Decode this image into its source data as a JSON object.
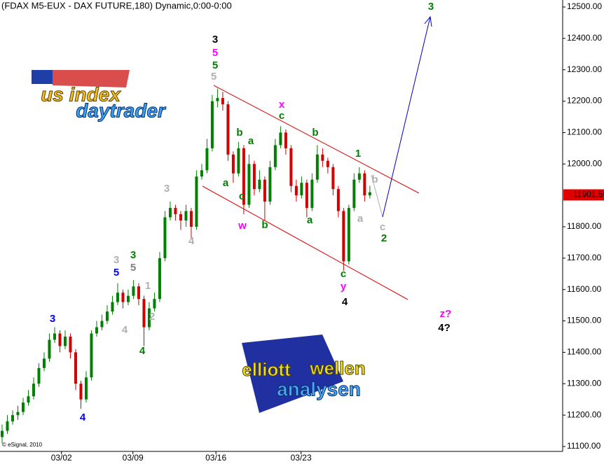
{
  "chart_data": {
    "type": "candlestick",
    "title": "(FDAX M5-EUX - DAX FUTURE,180) Dynamic,0:00-0:00",
    "copyright": "© eSignal, 2010",
    "up_color": "#008000",
    "down_color": "#d00000",
    "x": [
      0,
      1,
      2,
      3,
      4,
      5,
      6,
      7,
      8,
      9,
      10,
      11,
      12,
      13,
      14,
      15,
      16,
      17,
      18,
      19,
      20,
      21,
      22,
      23,
      24,
      25,
      26,
      27,
      28,
      29,
      30,
      31,
      32,
      33,
      34,
      35,
      36,
      37,
      38,
      39,
      40,
      41,
      42,
      43,
      44,
      45,
      46,
      47,
      48,
      49,
      50,
      51,
      52,
      53,
      54,
      55,
      56,
      57,
      58,
      59,
      60,
      61,
      62,
      63,
      64,
      65,
      66,
      67,
      68,
      69,
      70
    ],
    "open": [
      11130,
      11150,
      11180,
      11200,
      11210,
      11240,
      11260,
      11300,
      11350,
      11380,
      11440,
      11460,
      11420,
      11450,
      11400,
      11300,
      11250,
      11320,
      11460,
      11480,
      11500,
      11530,
      11560,
      11590,
      11560,
      11580,
      11610,
      11570,
      11480,
      11540,
      11570,
      11700,
      11830,
      11860,
      11840,
      11820,
      11850,
      11800,
      11960,
      11980,
      12050,
      12200,
      12210,
      12190,
      12030,
      11970,
      12050,
      11870,
      12000,
      11920,
      11950,
      11880,
      11990,
      12060,
      12100,
      12050,
      11930,
      11900,
      11940,
      11860,
      11950,
      12030,
      12010,
      11990,
      11920,
      11850,
      11690,
      11860,
      11950,
      11970,
      11900
    ],
    "high": [
      11170,
      11200,
      11215,
      11230,
      11255,
      11280,
      11320,
      11365,
      11400,
      11460,
      11480,
      11470,
      11470,
      11460,
      11410,
      11310,
      11340,
      11470,
      11500,
      11520,
      11550,
      11580,
      11620,
      11600,
      11600,
      11630,
      11620,
      11580,
      11560,
      11590,
      11720,
      11850,
      11880,
      11870,
      11850,
      11870,
      11860,
      11980,
      12000,
      12080,
      12220,
      12240,
      12230,
      12200,
      12040,
      12070,
      12060,
      12030,
      12010,
      11980,
      11960,
      12010,
      12080,
      12120,
      12110,
      12060,
      11950,
      11960,
      11950,
      11970,
      12060,
      12050,
      12020,
      12000,
      11930,
      11860,
      11870,
      11970,
      11990,
      11980,
      11930
    ],
    "low": [
      11110,
      11140,
      11170,
      11185,
      11200,
      11230,
      11250,
      11290,
      11340,
      11370,
      11430,
      11400,
      11410,
      11380,
      11280,
      11220,
      11240,
      11310,
      11450,
      11470,
      11490,
      11520,
      11550,
      11540,
      11550,
      11570,
      11550,
      11420,
      11470,
      11530,
      11560,
      11690,
      11820,
      11820,
      11790,
      11800,
      11760,
      11790,
      11950,
      11970,
      12040,
      12180,
      12170,
      12010,
      11940,
      11960,
      11840,
      11860,
      11900,
      11910,
      11820,
      11870,
      11980,
      12050,
      12030,
      11910,
      11880,
      11890,
      11830,
      11850,
      11940,
      11990,
      11970,
      11900,
      11830,
      11660,
      11680,
      11850,
      11940,
      11880,
      11890
    ],
    "close": [
      11150,
      11180,
      11200,
      11210,
      11240,
      11260,
      11300,
      11350,
      11380,
      11440,
      11460,
      11420,
      11450,
      11400,
      11300,
      11250,
      11320,
      11460,
      11480,
      11500,
      11530,
      11560,
      11590,
      11560,
      11580,
      11610,
      11570,
      11480,
      11540,
      11570,
      11700,
      11830,
      11860,
      11840,
      11820,
      11850,
      11800,
      11960,
      11980,
      12050,
      12200,
      12210,
      12190,
      12030,
      11970,
      12050,
      11870,
      12000,
      11920,
      11950,
      11880,
      11990,
      12060,
      12100,
      12050,
      11930,
      11900,
      11940,
      11860,
      11950,
      12030,
      12010,
      11990,
      11920,
      11850,
      11690,
      11860,
      11950,
      11970,
      11900,
      11910
    ],
    "xlim": [
      0,
      106.7
    ],
    "xticks": [
      {
        "value": 11.3,
        "label": "03/02"
      },
      {
        "value": 24.9,
        "label": "03/09"
      },
      {
        "value": 40.7,
        "label": "03/16"
      },
      {
        "value": 56.9,
        "label": "03/23"
      }
    ],
    "ylim": [
      11100,
      12500
    ],
    "yticks": [
      {
        "value": 11100,
        "label": "11100.00"
      },
      {
        "value": 11200,
        "label": "11200.00"
      },
      {
        "value": 11300,
        "label": "11300.00"
      },
      {
        "value": 11400,
        "label": "11400.00"
      },
      {
        "value": 11500,
        "label": "11500.00"
      },
      {
        "value": 11600,
        "label": "11600.00"
      },
      {
        "value": 11700,
        "label": "11700.00"
      },
      {
        "value": 11800,
        "label": "11800.00"
      },
      {
        "value": 12000,
        "label": "12000.00"
      },
      {
        "value": 12100,
        "label": "12100.00"
      },
      {
        "value": 12200,
        "label": "12200.00"
      },
      {
        "value": 12300,
        "label": "12300.00"
      },
      {
        "value": 12400,
        "label": "12400.00"
      },
      {
        "value": 12500,
        "label": "12500.00"
      }
    ],
    "last_price": {
      "value": 11901.5,
      "label": "11901.50",
      "color": "#e00000"
    },
    "logos": [
      "us index",
      "daytrader",
      "elliott",
      "wellen",
      "analysen"
    ],
    "annotations": [
      {
        "text": "3",
        "color": "#008000"
      },
      {
        "text": "3",
        "color": "#000000"
      },
      {
        "text": "5",
        "color": "#ff00ff"
      },
      {
        "text": "5",
        "color": "#008000"
      },
      {
        "text": "5",
        "color": "#b0b0b0"
      },
      {
        "text": "x",
        "color": "#ff00ff"
      },
      {
        "text": "c",
        "color": "#008000"
      },
      {
        "text": "b",
        "color": "#008000"
      },
      {
        "text": "a",
        "color": "#008000"
      },
      {
        "text": "b",
        "color": "#008000"
      },
      {
        "text": "1",
        "color": "#008000"
      },
      {
        "text": "b",
        "color": "#b0b0b0"
      },
      {
        "text": "a",
        "color": "#008000"
      },
      {
        "text": "c",
        "color": "#008000"
      },
      {
        "text": "w",
        "color": "#ff00ff"
      },
      {
        "text": "b",
        "color": "#008000"
      },
      {
        "text": "a",
        "color": "#008000"
      },
      {
        "text": "a",
        "color": "#b0b0b0"
      },
      {
        "text": "c",
        "color": "#b0b0b0"
      },
      {
        "text": "2",
        "color": "#008000"
      },
      {
        "text": "c",
        "color": "#008000"
      },
      {
        "text": "y",
        "color": "#ff00ff"
      },
      {
        "text": "4",
        "color": "#000000"
      },
      {
        "text": "z?",
        "color": "#ff00ff"
      },
      {
        "text": "4?",
        "color": "#000000"
      },
      {
        "text": "3",
        "color": "#b0b0b0"
      },
      {
        "text": "4",
        "color": "#b0b0b0"
      },
      {
        "text": "3",
        "color": "#b0b0b0"
      },
      {
        "text": "5",
        "color": "#0000ff"
      },
      {
        "text": "3",
        "color": "#008000"
      },
      {
        "text": "5",
        "color": "#808080"
      },
      {
        "text": "1",
        "color": "#b0b0b0"
      },
      {
        "text": "2",
        "color": "#b0b0b0"
      },
      {
        "text": "4",
        "color": "#b0b0b0"
      },
      {
        "text": "4",
        "color": "#008000"
      },
      {
        "text": "3",
        "color": "#0000ff"
      },
      {
        "text": "4",
        "color": "#0000ff"
      }
    ]
  }
}
